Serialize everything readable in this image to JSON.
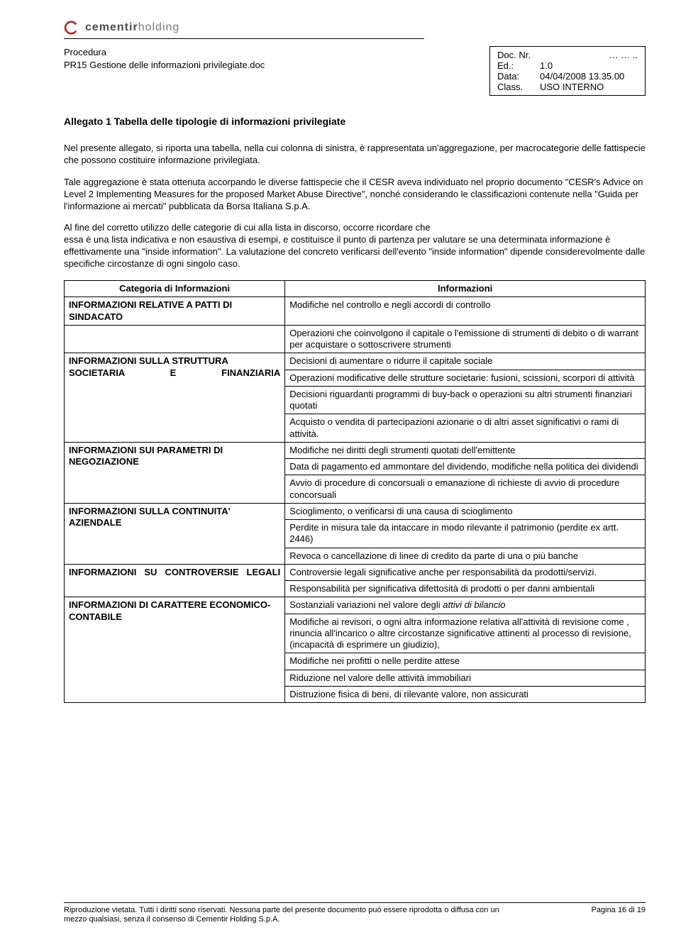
{
  "logo": {
    "brand_prefix": "cementir",
    "brand_suffix": "holding"
  },
  "header": {
    "procedura": "Procedura",
    "doc_title": "PR15 Gestione delle informazioni privilegiate.doc"
  },
  "meta": {
    "doc_nr_label": "Doc. Nr.",
    "doc_nr_value": "… … ..",
    "ed_label": "Ed.:",
    "ed_value": "1.0",
    "data_label": "Data:",
    "data_value": "04/04/2008 13.35.00",
    "class_label": "Class.",
    "class_value": "USO INTERNO"
  },
  "title": "Allegato 1 Tabella delle tipologie di informazioni privilegiate",
  "p1": "Nel presente allegato, si riporta una tabella, nella cui colonna di sinistra, è rappresentata un'aggregazione, per macrocategorie delle fattispecie che possono costituire informazione privilegiata.",
  "p2": "Tale aggregazione è stata ottenuta accorpando le diverse fattispecie che il CESR aveva individuato nel proprio documento \"CESR's Advice on Level 2 Implementing Measures for the proposed Market Abuse Directive\", nonché considerando le classificazioni contenute nella \"Guida per l'informazione ai mercati\" pubblicata da Borsa Italiana S.p.A.",
  "p3": "Al fine del corretto utilizzo delle categorie di cui alla lista in discorso, occorre ricordare che\nessa è una lista indicativa e non esaustiva di esempi, e costituisce il punto di partenza per valutare se una determinata informazione è effettivamente una \"inside information\". La valutazione del concreto verificarsi dell'evento \"inside information\" dipende considerevolmente dalle specifiche circostanze di ogni singolo caso.",
  "table": {
    "head_cat": "Categoria di Informazioni",
    "head_info": "Informazioni",
    "rows": [
      {
        "cat": "INFORMAZIONI RELATIVE A PATTI DI SINDACATO",
        "span": 1,
        "info": [
          "Modifiche nel controllo e negli accordi di controllo"
        ]
      },
      {
        "cat": "",
        "span": 1,
        "info": [
          "Operazioni che coinvolgono il capitale o l'emissione di strumenti di debito o di warrant per acquistare o sottoscrivere strumenti"
        ]
      },
      {
        "cat": "INFORMAZIONI SULLA STRUTTURA SOCIETARIA E FINANZIARIA",
        "span": 4,
        "info": [
          "Decisioni di aumentare o ridurre il capitale sociale",
          "Operazioni modificative delle strutture societarie: fusioni, scissioni, scorpori di attività",
          "Decisioni riguardanti programmi di buy-back o operazioni su altri strumenti finanziari quotati",
          "Acquisto o vendita di partecipazioni azionarie o di altri asset significativi o rami di attività."
        ]
      },
      {
        "cat": "INFORMAZIONI SUI PARAMETRI DI NEGOZIAZIONE",
        "span": 3,
        "info": [
          "Modifiche nei diritti degli strumenti quotati dell'emittente",
          " Data di pagamento ed ammontare del dividendo, modifiche nella politica dei dividendi",
          "Avvio di procedure di concorsuali o emanazione di richieste di avvio di procedure concorsuali"
        ]
      },
      {
        "cat": "INFORMAZIONI SULLA CONTINUITA' AZIENDALE",
        "span": 3,
        "info": [
          "Scioglimento, o verificarsi di una causa di scioglimento",
          "Perdite in misura tale da intaccare in modo rilevante il patrimonio (perdite ex artt. 2446)",
          "Revoca o cancellazione di linee di credito da parte di una o più banche"
        ]
      },
      {
        "cat": "INFORMAZIONI SU CONTROVERSIE LEGALI",
        "span": 2,
        "info": [
          "Controversie legali significative anche per responsabilità da prodotti/servizi.",
          "Responsabilità per significativa difettosità di prodotti o per danni ambientali"
        ]
      },
      {
        "cat": "INFORMAZIONI DI CARATTERE ECONOMICO-CONTABILE",
        "span": 5,
        "info": [
          "Sostanziali variazioni nel valore degli attivi di bilancio",
          "Modifiche ai revisori, o ogni altra informazione relativa all'attività di revisione come , rinuncia all'incarico o altre circostanze significative attinenti al processo di revisione, (incapacità di esprimere un giudizio),",
          "Modifiche nei profitti o nelle perdite attese",
          "Riduzione nel valore delle attività immobiliari",
          "Distruzione fisica di beni, di rilevante valore, non assicurati"
        ]
      }
    ]
  },
  "footer": {
    "left": "Riproduzione vietata. Tutti i diritti sono riservati. Nessuna parte del presente documento può essere riprodotta o diffusa con un mezzo qualsiasi, senza il consenso di Cementir Holding S.p.A.",
    "right": "Pagina 16 di 19"
  }
}
